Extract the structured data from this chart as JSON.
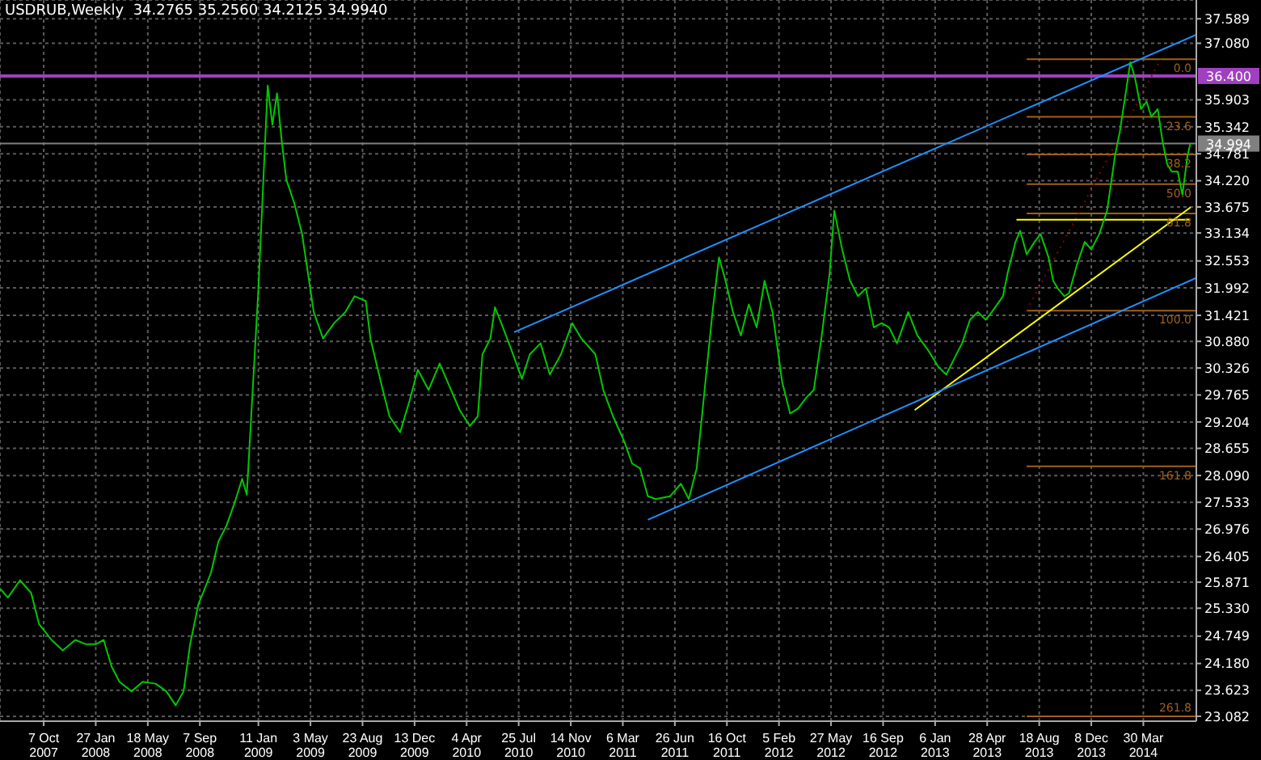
{
  "chart_data": {
    "type": "line",
    "title": "USDRUB,Weekly  34.2765 35.2560 34.2125 34.9940",
    "xlim": [
      "2007-07-05",
      "2014-07-22"
    ],
    "xticks": [
      {
        "value": "2007-10-07",
        "label": "7 Oct 2007"
      },
      {
        "value": "2008-01-27",
        "label": "27 Jan 2008"
      },
      {
        "value": "2008-05-18",
        "label": "18 May 2008"
      },
      {
        "value": "2008-09-07",
        "label": "7 Sep 2008"
      },
      {
        "value": "2009-01-11",
        "label": "11 Jan 2009"
      },
      {
        "value": "2009-05-03",
        "label": "3 May 2009"
      },
      {
        "value": "2009-08-23",
        "label": "23 Aug 2009"
      },
      {
        "value": "2009-12-13",
        "label": "13 Dec 2009"
      },
      {
        "value": "2010-04-04",
        "label": "4 Apr 2010"
      },
      {
        "value": "2010-07-25",
        "label": "25 Jul 2010"
      },
      {
        "value": "2010-11-14",
        "label": "14 Nov 2010"
      },
      {
        "value": "2011-03-06",
        "label": "6 Mar 2011"
      },
      {
        "value": "2011-06-26",
        "label": "26 Jun 2011"
      },
      {
        "value": "2011-10-16",
        "label": "16 Oct 2011"
      },
      {
        "value": "2012-02-05",
        "label": "5 Feb 2012"
      },
      {
        "value": "2012-05-27",
        "label": "27 May 2012"
      },
      {
        "value": "2012-09-16",
        "label": "16 Sep 2012"
      },
      {
        "value": "2013-01-06",
        "label": "6 Jan 2013"
      },
      {
        "value": "2013-04-28",
        "label": "28 Apr 2013"
      },
      {
        "value": "2013-08-18",
        "label": "18 Aug 2013"
      },
      {
        "value": "2013-12-08",
        "label": "8 Dec 2013"
      },
      {
        "value": "2014-03-30",
        "label": "30 Mar 2014"
      }
    ],
    "ylim": [
      22.98,
      37.98
    ],
    "yticks": [
      {
        "value": 37.589,
        "label": "37.589"
      },
      {
        "value": 37.08,
        "label": "37.080"
      },
      {
        "value": 35.903,
        "label": "35.903"
      },
      {
        "value": 35.342,
        "label": "35.342"
      },
      {
        "value": 34.781,
        "label": "34.781"
      },
      {
        "value": 34.22,
        "label": "34.220"
      },
      {
        "value": 33.675,
        "label": "33.675"
      },
      {
        "value": 33.134,
        "label": "33.134"
      },
      {
        "value": 32.553,
        "label": "32.553"
      },
      {
        "value": 31.992,
        "label": "31.992"
      },
      {
        "value": 31.421,
        "label": "31.421"
      },
      {
        "value": 30.88,
        "label": "30.880"
      },
      {
        "value": 30.326,
        "label": "30.326"
      },
      {
        "value": 29.765,
        "label": "29.765"
      },
      {
        "value": 29.204,
        "label": "29.204"
      },
      {
        "value": 28.655,
        "label": "28.655"
      },
      {
        "value": 28.09,
        "label": "28.090"
      },
      {
        "value": 27.533,
        "label": "27.533"
      },
      {
        "value": 26.976,
        "label": "26.976"
      },
      {
        "value": 26.405,
        "label": "26.405"
      },
      {
        "value": 25.871,
        "label": "25.871"
      },
      {
        "value": 25.33,
        "label": "25.330"
      },
      {
        "value": 24.749,
        "label": "24.749"
      },
      {
        "value": 24.18,
        "label": "24.180"
      },
      {
        "value": 23.623,
        "label": "23.623"
      },
      {
        "value": 23.082,
        "label": "23.082"
      }
    ],
    "grid": true,
    "marker": "none",
    "ref_lines": [
      {
        "axis": "y",
        "value": 36.4,
        "label": "36.400",
        "color": "#a040c0"
      },
      {
        "axis": "y",
        "value": 34.994,
        "label": "34.994",
        "color": "#808080"
      }
    ],
    "series": [
      {
        "color": "#00c800",
        "x": [
          "2007-07-05",
          "2007-07-22",
          "2007-08-17",
          "2007-09-10",
          "2007-09-27",
          "2007-10-24",
          "2007-11-17",
          "2007-12-14",
          "2008-01-06",
          "2008-01-27",
          "2008-02-13",
          "2008-03-01",
          "2008-03-18",
          "2008-04-13",
          "2008-05-07",
          "2008-06-04",
          "2008-06-27",
          "2008-07-17",
          "2008-08-03",
          "2008-08-17",
          "2008-09-04",
          "2008-09-14",
          "2008-10-01",
          "2008-10-17",
          "2008-11-03",
          "2008-11-20",
          "2008-12-07",
          "2008-12-17",
          "2009-01-11",
          "2009-01-24",
          "2009-01-31",
          "2009-02-10",
          "2009-02-20",
          "2009-03-02",
          "2009-03-12",
          "2009-03-29",
          "2009-04-15",
          "2009-05-10",
          "2009-05-30",
          "2009-06-23",
          "2009-07-17",
          "2009-08-06",
          "2009-08-30",
          "2009-09-09",
          "2009-10-03",
          "2009-10-20",
          "2009-11-12",
          "2009-12-02",
          "2009-12-20",
          "2010-01-12",
          "2010-02-05",
          "2010-02-25",
          "2010-03-20",
          "2010-04-11",
          "2010-04-28",
          "2010-05-08",
          "2010-05-25",
          "2010-06-04",
          "2010-06-21",
          "2010-07-08",
          "2010-08-01",
          "2010-08-18",
          "2010-09-10",
          "2010-09-30",
          "2010-10-24",
          "2010-11-17",
          "2010-12-07",
          "2011-01-06",
          "2011-01-23",
          "2011-02-13",
          "2011-03-09",
          "2011-03-26",
          "2011-04-12",
          "2011-04-29",
          "2011-05-16",
          "2011-06-16",
          "2011-07-09",
          "2011-07-26",
          "2011-08-12",
          "2011-08-29",
          "2011-09-15",
          "2011-09-29",
          "2011-10-13",
          "2011-10-29",
          "2011-11-15",
          "2011-12-02",
          "2011-12-19",
          "2012-01-05",
          "2012-01-22",
          "2012-02-12",
          "2012-02-29",
          "2012-03-17",
          "2012-04-03",
          "2012-04-20",
          "2012-05-07",
          "2012-05-24",
          "2012-06-03",
          "2012-06-20",
          "2012-07-07",
          "2012-07-24",
          "2012-08-10",
          "2012-08-27",
          "2012-09-13",
          "2012-09-29",
          "2012-10-16",
          "2012-11-09",
          "2012-11-29",
          "2012-12-23",
          "2013-01-13",
          "2013-01-30",
          "2013-02-16",
          "2013-03-05",
          "2013-03-22",
          "2013-04-08",
          "2013-04-25",
          "2013-05-08",
          "2013-06-01",
          "2013-06-11",
          "2013-06-28",
          "2013-07-08",
          "2013-07-22",
          "2013-08-08",
          "2013-08-21",
          "2013-09-07",
          "2013-09-17",
          "2013-09-27",
          "2013-10-11",
          "2013-10-21",
          "2013-11-07",
          "2013-11-24",
          "2013-12-08",
          "2013-12-25",
          "2014-01-11",
          "2014-01-28",
          "2014-02-07",
          "2014-02-20",
          "2014-03-02",
          "2014-03-12",
          "2014-03-25",
          "2014-04-06",
          "2014-04-16",
          "2014-04-30",
          "2014-05-10",
          "2014-05-20",
          "2014-05-30",
          "2014-06-12",
          "2014-06-22",
          "2014-07-03",
          "2014-07-09"
        ],
        "values": [
          25.74,
          25.55,
          25.91,
          25.65,
          25.0,
          24.67,
          24.45,
          24.67,
          24.58,
          24.58,
          24.67,
          24.12,
          23.8,
          23.6,
          23.8,
          23.76,
          23.6,
          23.31,
          23.6,
          24.58,
          25.42,
          25.65,
          26.07,
          26.72,
          27.04,
          27.5,
          28.02,
          27.69,
          31.98,
          34.74,
          36.2,
          35.39,
          36.04,
          35.06,
          34.25,
          33.76,
          33.11,
          31.49,
          30.94,
          31.26,
          31.49,
          31.82,
          31.72,
          30.94,
          29.97,
          29.32,
          28.99,
          29.64,
          30.29,
          29.87,
          30.42,
          29.97,
          29.45,
          29.12,
          29.32,
          30.61,
          30.94,
          31.59,
          31.17,
          30.74,
          30.1,
          30.61,
          30.84,
          30.19,
          30.61,
          31.26,
          30.94,
          30.61,
          29.87,
          29.32,
          28.8,
          28.34,
          28.24,
          27.66,
          27.6,
          27.66,
          27.92,
          27.6,
          28.24,
          29.87,
          31.49,
          32.63,
          32.14,
          31.49,
          31.0,
          31.65,
          31.17,
          32.14,
          31.49,
          30.03,
          29.38,
          29.48,
          29.7,
          29.87,
          31.0,
          32.3,
          33.6,
          32.79,
          32.14,
          31.82,
          31.98,
          31.17,
          31.26,
          31.17,
          30.84,
          31.49,
          31.0,
          30.68,
          30.35,
          30.19,
          30.52,
          30.84,
          31.33,
          31.49,
          31.33,
          31.49,
          31.82,
          32.3,
          32.95,
          33.18,
          32.69,
          32.95,
          33.11,
          32.63,
          32.14,
          31.98,
          31.82,
          31.88,
          32.47,
          32.95,
          32.79,
          33.11,
          33.6,
          34.74,
          35.22,
          36.04,
          36.69,
          36.36,
          35.71,
          35.87,
          35.55,
          35.71,
          35.06,
          34.57,
          34.41,
          34.41,
          33.93,
          34.74,
          34.99
        ]
      },
      {
        "color": "#1e90ff",
        "x": [
          "2010-07-15",
          "2014-07-22"
        ],
        "values": [
          31.07,
          37.26
        ]
      },
      {
        "color": "#1e90ff",
        "x": [
          "2011-04-29",
          "2014-07-22"
        ],
        "values": [
          27.17,
          32.2
        ]
      },
      {
        "color": "#ffff00",
        "x": [
          "2012-11-23",
          "2014-07-10"
        ],
        "values": [
          29.45,
          33.67
        ]
      },
      {
        "color": "#ffff00",
        "x": [
          "2013-06-30",
          "2014-07-09"
        ],
        "values": [
          33.41,
          33.41
        ]
      },
      {
        "color": "#8b0000",
        "line_style": "dotted",
        "x": [
          "2013-07-22",
          "2014-05-06"
        ],
        "values": [
          31.52,
          36.75
        ]
      },
      {
        "name": "0.0",
        "color": "#a0601a",
        "x": [
          "2013-07-22",
          "2014-07-22"
        ],
        "values": [
          36.75,
          36.75
        ]
      },
      {
        "name": "23.6",
        "color": "#a0601a",
        "x": [
          "2013-07-22",
          "2014-07-22"
        ],
        "values": [
          35.55,
          35.55
        ]
      },
      {
        "name": "38.2",
        "color": "#a0601a",
        "x": [
          "2013-07-22",
          "2014-07-22"
        ],
        "values": [
          34.77,
          34.77
        ]
      },
      {
        "name": "50.0",
        "color": "#a0601a",
        "x": [
          "2013-07-22",
          "2014-07-22"
        ],
        "values": [
          34.15,
          34.15
        ]
      },
      {
        "name": "61.8",
        "color": "#a0601a",
        "x": [
          "2013-07-22",
          "2014-07-22"
        ],
        "values": [
          33.54,
          33.54
        ]
      },
      {
        "name": "100.0",
        "color": "#a0601a",
        "x": [
          "2013-07-22",
          "2014-07-22"
        ],
        "values": [
          31.52,
          31.52
        ]
      },
      {
        "name": "161.8",
        "color": "#a0601a",
        "x": [
          "2013-07-22",
          "2014-07-22"
        ],
        "values": [
          28.28,
          28.28
        ]
      },
      {
        "name": "261.8",
        "color": "#a0601a",
        "x": [
          "2013-07-22",
          "2014-07-22"
        ],
        "values": [
          23.08,
          23.08
        ]
      }
    ]
  }
}
